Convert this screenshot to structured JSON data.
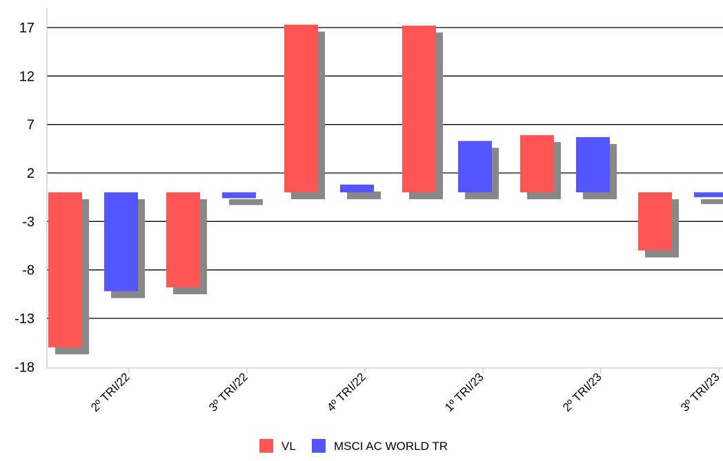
{
  "chart_data": {
    "type": "bar",
    "categories": [
      "2º TRI/22",
      "3º TRI/22",
      "4º TRI/22",
      "1º TRI/23",
      "2º TRI/23",
      "3º TRI/23"
    ],
    "series": [
      {
        "name": "VL",
        "color": "#ff5555",
        "values": [
          -16.0,
          -9.8,
          17.3,
          17.2,
          5.9,
          -6.0
        ]
      },
      {
        "name": "MSCI AC WORLD TR",
        "color": "#5555ff",
        "values": [
          -10.2,
          -0.6,
          0.8,
          5.3,
          5.7,
          -0.5
        ]
      }
    ],
    "yticks": [
      17,
      12,
      7,
      2,
      -3,
      -8,
      -13,
      -18
    ],
    "ylim": [
      -18,
      19.5
    ],
    "grid": true,
    "shadow_color": "#888888",
    "legend_position": "bottom"
  }
}
